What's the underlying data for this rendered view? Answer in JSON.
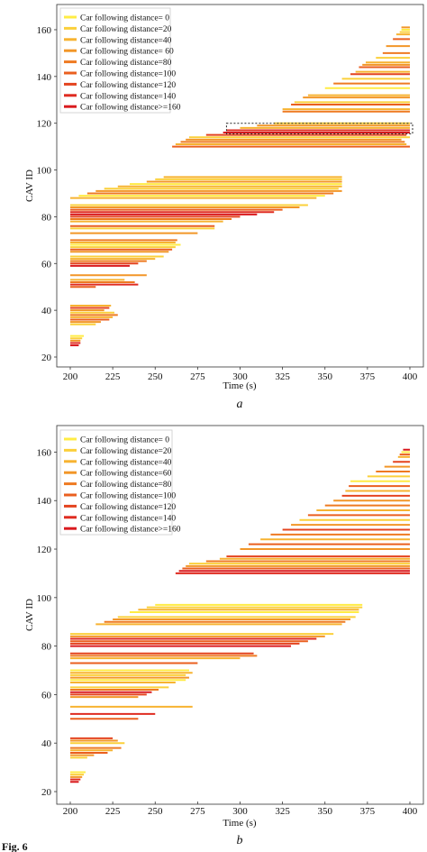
{
  "legend": [
    {
      "label": "Car following distance= 0",
      "color": "#ffec45"
    },
    {
      "label": "Car following distance=20",
      "color": "#fbd03b"
    },
    {
      "label": "Car following distance=40",
      "color": "#f7b331"
    },
    {
      "label": "Car following distance= 60",
      "color": "#f29628"
    },
    {
      "label": "Car following distance=80",
      "color": "#ee7a22"
    },
    {
      "label": "Car following distance=100",
      "color": "#ea5f1f"
    },
    {
      "label": "Car following distance=120",
      "color": "#e4441f"
    },
    {
      "label": "Car following distance=140",
      "color": "#df2b20"
    },
    {
      "label": "Car following distance>=160",
      "color": "#d91a1e"
    }
  ],
  "legend_b": [
    "Car following distance= 0",
    "Car following distance=20",
    "Car following distance=40",
    "Car following distance=60",
    "Car following distance=80",
    "Car following distance=100",
    "Car following distance=120",
    "Car following distance=140",
    "Car following distance>=160"
  ],
  "caption": "Fig. 6",
  "chart_data": [
    {
      "type": "bar",
      "panel": "a",
      "xlabel": "Time (s)",
      "ylabel": "CAV ID",
      "xlim": [
        200,
        400
      ],
      "ylim": [
        20,
        165
      ],
      "xticks": [
        200,
        225,
        250,
        275,
        300,
        325,
        350,
        375,
        400
      ],
      "yticks": [
        20,
        40,
        60,
        80,
        100,
        120,
        140,
        160
      ],
      "legend_position": "top-left",
      "highlight_box": {
        "x0": 292,
        "x1": 400,
        "y0": 115.5,
        "y1": 120
      },
      "segments": [
        [
          25,
          200,
          205,
          8
        ],
        [
          26,
          200,
          206,
          7
        ],
        [
          27,
          200,
          206,
          3
        ],
        [
          28,
          200,
          207,
          1
        ],
        [
          29,
          200,
          208,
          0
        ],
        [
          34,
          200,
          215,
          1
        ],
        [
          35,
          200,
          218,
          3
        ],
        [
          36,
          200,
          223,
          5
        ],
        [
          37,
          200,
          225,
          2
        ],
        [
          38,
          200,
          228,
          4
        ],
        [
          39,
          200,
          226,
          1
        ],
        [
          40,
          200,
          220,
          3
        ],
        [
          41,
          200,
          223,
          6
        ],
        [
          42,
          200,
          224,
          2
        ],
        [
          50,
          200,
          215,
          5
        ],
        [
          51,
          200,
          240,
          7
        ],
        [
          52,
          200,
          238,
          4
        ],
        [
          53,
          200,
          232,
          2
        ],
        [
          55,
          200,
          245,
          3
        ],
        [
          59,
          200,
          235,
          8
        ],
        [
          60,
          200,
          240,
          6
        ],
        [
          61,
          200,
          245,
          4
        ],
        [
          62,
          200,
          250,
          2
        ],
        [
          63,
          200,
          255,
          1
        ],
        [
          65,
          200,
          258,
          3
        ],
        [
          66,
          200,
          260,
          5
        ],
        [
          67,
          200,
          262,
          1
        ],
        [
          68,
          200,
          265,
          0
        ],
        [
          69,
          200,
          262,
          2
        ],
        [
          70,
          200,
          263,
          4
        ],
        [
          73,
          200,
          275,
          3
        ],
        [
          75,
          200,
          285,
          1
        ],
        [
          76,
          200,
          285,
          5
        ],
        [
          78,
          200,
          290,
          2
        ],
        [
          79,
          200,
          295,
          4
        ],
        [
          80,
          200,
          300,
          6
        ],
        [
          81,
          200,
          310,
          8
        ],
        [
          82,
          200,
          320,
          7
        ],
        [
          83,
          200,
          325,
          5
        ],
        [
          84,
          200,
          335,
          3
        ],
        [
          85,
          200,
          340,
          1
        ],
        [
          88,
          200,
          345,
          2
        ],
        [
          89,
          205,
          350,
          0
        ],
        [
          90,
          210,
          355,
          4
        ],
        [
          91,
          215,
          360,
          3
        ],
        [
          92,
          220,
          358,
          1
        ],
        [
          93,
          228,
          360,
          2
        ],
        [
          94,
          235,
          360,
          0
        ],
        [
          95,
          245,
          360,
          3
        ],
        [
          96,
          250,
          360,
          1
        ],
        [
          97,
          255,
          360,
          2
        ],
        [
          110,
          260,
          400,
          5
        ],
        [
          111,
          262,
          398,
          2
        ],
        [
          112,
          265,
          397,
          4
        ],
        [
          113,
          268,
          395,
          3
        ],
        [
          114,
          270,
          400,
          1
        ],
        [
          115,
          280,
          398,
          6
        ],
        [
          116,
          290,
          400,
          8
        ],
        [
          117,
          292,
          400,
          7
        ],
        [
          118,
          300,
          400,
          2
        ],
        [
          119,
          310,
          400,
          3
        ],
        [
          120,
          320,
          400,
          1
        ],
        [
          125,
          325,
          400,
          4
        ],
        [
          126,
          325,
          400,
          2
        ],
        [
          128,
          330,
          400,
          5
        ],
        [
          129,
          332,
          400,
          1
        ],
        [
          131,
          337,
          400,
          3
        ],
        [
          132,
          340,
          400,
          2
        ],
        [
          135,
          350,
          400,
          0
        ],
        [
          137,
          355,
          400,
          4
        ],
        [
          139,
          360,
          400,
          1
        ],
        [
          141,
          365,
          400,
          6
        ],
        [
          142,
          368,
          400,
          2
        ],
        [
          144,
          370,
          400,
          5
        ],
        [
          145,
          372,
          400,
          3
        ],
        [
          146,
          374,
          400,
          2
        ],
        [
          148,
          380,
          400,
          1
        ],
        [
          150,
          384,
          400,
          4
        ],
        [
          153,
          386,
          400,
          3
        ],
        [
          156,
          390,
          400,
          5
        ],
        [
          158,
          392,
          400,
          2
        ],
        [
          159,
          394,
          400,
          1
        ],
        [
          160,
          395,
          400,
          0
        ],
        [
          161,
          395,
          400,
          3
        ]
      ]
    },
    {
      "type": "bar",
      "panel": "b",
      "xlabel": "Time (s)",
      "ylabel": "CAV ID",
      "xlim": [
        200,
        400
      ],
      "ylim": [
        20,
        165
      ],
      "xticks": [
        200,
        225,
        250,
        275,
        300,
        325,
        350,
        375,
        400
      ],
      "yticks": [
        20,
        40,
        60,
        80,
        100,
        120,
        140,
        160
      ],
      "legend_position": "top-left",
      "segments": [
        [
          24,
          200,
          205,
          8
        ],
        [
          25,
          200,
          206,
          7
        ],
        [
          26,
          200,
          207,
          3
        ],
        [
          27,
          200,
          208,
          1
        ],
        [
          28,
          200,
          209,
          0
        ],
        [
          34,
          200,
          210,
          1
        ],
        [
          35,
          200,
          214,
          3
        ],
        [
          36,
          200,
          222,
          5
        ],
        [
          37,
          200,
          225,
          2
        ],
        [
          38,
          200,
          230,
          4
        ],
        [
          40,
          200,
          232,
          1
        ],
        [
          41,
          200,
          228,
          3
        ],
        [
          42,
          200,
          225,
          6
        ],
        [
          50,
          200,
          240,
          5
        ],
        [
          52,
          200,
          250,
          7
        ],
        [
          55,
          200,
          272,
          2
        ],
        [
          59,
          200,
          240,
          3
        ],
        [
          60,
          200,
          245,
          6
        ],
        [
          61,
          200,
          248,
          8
        ],
        [
          62,
          200,
          252,
          4
        ],
        [
          63,
          200,
          258,
          1
        ],
        [
          65,
          200,
          262,
          2
        ],
        [
          66,
          200,
          268,
          0
        ],
        [
          67,
          200,
          270,
          3
        ],
        [
          68,
          200,
          268,
          1
        ],
        [
          69,
          200,
          272,
          2
        ],
        [
          70,
          200,
          270,
          0
        ],
        [
          73,
          200,
          275,
          5
        ],
        [
          75,
          200,
          300,
          2
        ],
        [
          76,
          200,
          310,
          4
        ],
        [
          77,
          200,
          308,
          6
        ],
        [
          80,
          200,
          330,
          8
        ],
        [
          81,
          200,
          335,
          6
        ],
        [
          82,
          200,
          340,
          5
        ],
        [
          83,
          200,
          345,
          7
        ],
        [
          84,
          200,
          350,
          3
        ],
        [
          85,
          200,
          355,
          1
        ],
        [
          89,
          215,
          360,
          2
        ],
        [
          90,
          220,
          362,
          4
        ],
        [
          91,
          225,
          365,
          3
        ],
        [
          92,
          228,
          368,
          1
        ],
        [
          94,
          235,
          370,
          0
        ],
        [
          95,
          240,
          370,
          2
        ],
        [
          96,
          245,
          372,
          1
        ],
        [
          97,
          250,
          372,
          0
        ],
        [
          110,
          262,
          400,
          7
        ],
        [
          111,
          264,
          400,
          8
        ],
        [
          112,
          266,
          400,
          5
        ],
        [
          113,
          268,
          400,
          3
        ],
        [
          114,
          270,
          400,
          1
        ],
        [
          115,
          280,
          400,
          4
        ],
        [
          116,
          288,
          400,
          2
        ],
        [
          117,
          292,
          400,
          6
        ],
        [
          120,
          300,
          400,
          3
        ],
        [
          122,
          305,
          400,
          5
        ],
        [
          124,
          312,
          400,
          2
        ],
        [
          126,
          318,
          400,
          4
        ],
        [
          128,
          325,
          400,
          6
        ],
        [
          130,
          330,
          400,
          3
        ],
        [
          132,
          335,
          400,
          1
        ],
        [
          134,
          340,
          400,
          5
        ],
        [
          136,
          345,
          400,
          2
        ],
        [
          138,
          350,
          400,
          4
        ],
        [
          140,
          355,
          400,
          3
        ],
        [
          142,
          360,
          400,
          6
        ],
        [
          144,
          362,
          400,
          2
        ],
        [
          146,
          364,
          400,
          5
        ],
        [
          148,
          365,
          400,
          0
        ],
        [
          150,
          375,
          400,
          1
        ],
        [
          152,
          380,
          400,
          4
        ],
        [
          154,
          385,
          400,
          3
        ],
        [
          156,
          390,
          400,
          6
        ],
        [
          158,
          393,
          400,
          2
        ],
        [
          159,
          394,
          400,
          5
        ],
        [
          160,
          395,
          400,
          0
        ],
        [
          161,
          396,
          400,
          8
        ]
      ]
    }
  ]
}
